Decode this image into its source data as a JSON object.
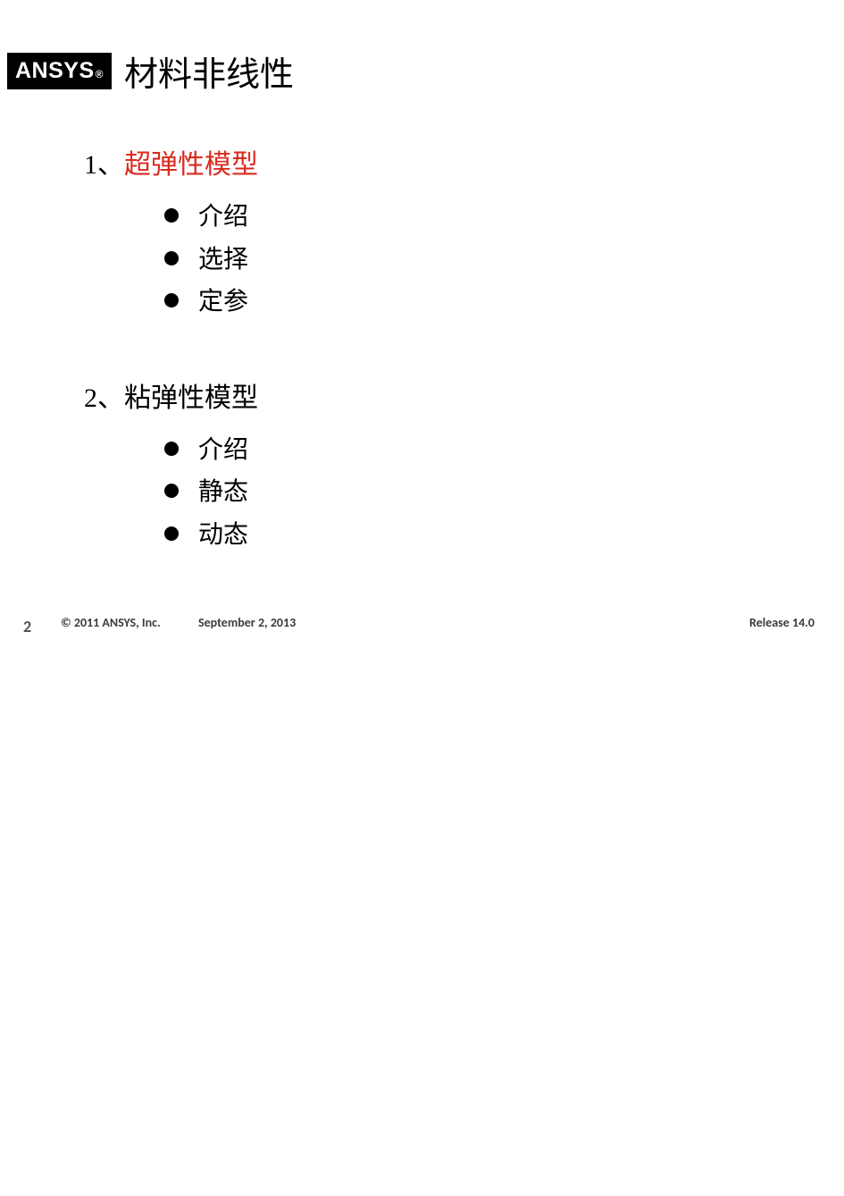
{
  "logo": {
    "text": "ANSYS",
    "reg": "®",
    "bg": "#000000",
    "fg": "#ffffff"
  },
  "title": "材料非线性",
  "sections": [
    {
      "number": "1、",
      "label": "超弹性模型",
      "label_color": "#d92b1f",
      "bullets": [
        "介绍",
        "选择",
        "定参"
      ]
    },
    {
      "number": "2、",
      "label": "粘弹性模型",
      "label_color": "#000000",
      "bullets": [
        "介绍",
        "静态",
        "动态"
      ]
    }
  ],
  "footer": {
    "page": "2",
    "copyright": "© 2011 ANSYS, Inc.",
    "date": "September 2, 2013",
    "release": "Release 14.0"
  },
  "styling": {
    "title_fontsize": 38,
    "heading_fontsize": 30,
    "bullet_fontsize": 28,
    "footer_fontsize": 14,
    "background_color": "#ffffff",
    "text_color": "#000000",
    "bullet_marker_color": "#000000"
  }
}
